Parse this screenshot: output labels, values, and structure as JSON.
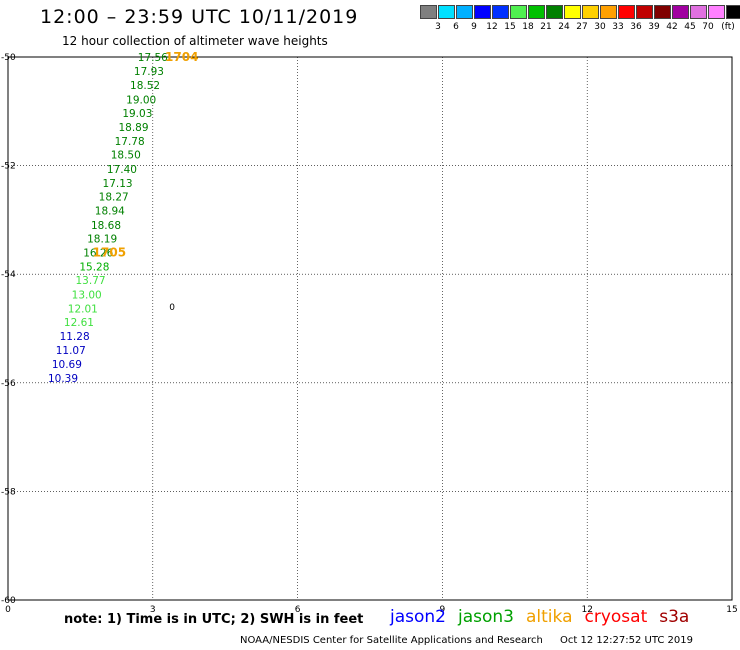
{
  "header": {
    "title": "12:00 – 23:59 UTC 10/11/2019",
    "subtitle": "12 hour collection of altimeter wave heights"
  },
  "legend": {
    "colors": [
      "#7f7f7f",
      "#00e0ff",
      "#00b0ff",
      "#0000ff",
      "#0030ff",
      "#50f050",
      "#00c000",
      "#008000",
      "#ffff00",
      "#ffd000",
      "#ffa000",
      "#ff0000",
      "#c00000",
      "#800000",
      "#a000a0",
      "#e070e0",
      "#ff80ff",
      "#000000"
    ],
    "labels": [
      "3",
      "6",
      "9",
      "12",
      "15",
      "18",
      "21",
      "24",
      "27",
      "30",
      "33",
      "36",
      "39",
      "42",
      "45",
      "70",
      "(ft)"
    ]
  },
  "map": {
    "x_axis": {
      "min": 0,
      "max": 15,
      "ticks": [
        "0",
        "3",
        "6",
        "9",
        "12",
        "15"
      ]
    },
    "y_axis": {
      "min": -60,
      "max": -50,
      "ticks": [
        "-50",
        "-52",
        "-54",
        "-56",
        "-58",
        "-60"
      ]
    },
    "observations": [
      {
        "lon": 3.0,
        "lat": -50.0,
        "value": "17.56",
        "color": "#008000"
      },
      {
        "lon": 2.92,
        "lat": -50.26,
        "value": "17.93",
        "color": "#008000"
      },
      {
        "lon": 2.84,
        "lat": -50.52,
        "value": "18.52",
        "color": "#008000"
      },
      {
        "lon": 2.76,
        "lat": -50.78,
        "value": "19.00",
        "color": "#008000"
      },
      {
        "lon": 2.68,
        "lat": -51.03,
        "value": "19.03",
        "color": "#008000"
      },
      {
        "lon": 2.6,
        "lat": -51.29,
        "value": "18.89",
        "color": "#008000"
      },
      {
        "lon": 2.52,
        "lat": -51.55,
        "value": "17.78",
        "color": "#008000"
      },
      {
        "lon": 2.44,
        "lat": -51.8,
        "value": "18.50",
        "color": "#008000"
      },
      {
        "lon": 2.36,
        "lat": -52.06,
        "value": "17.40",
        "color": "#008000"
      },
      {
        "lon": 2.27,
        "lat": -52.32,
        "value": "17.13",
        "color": "#008000"
      },
      {
        "lon": 2.19,
        "lat": -52.57,
        "value": "18.27",
        "color": "#008000"
      },
      {
        "lon": 2.11,
        "lat": -52.83,
        "value": "18.94",
        "color": "#008000"
      },
      {
        "lon": 2.03,
        "lat": -53.09,
        "value": "18.68",
        "color": "#008000"
      },
      {
        "lon": 1.95,
        "lat": -53.34,
        "value": "18.19",
        "color": "#008000"
      },
      {
        "lon": 1.87,
        "lat": -53.6,
        "value": "16.26",
        "color": "#008000"
      },
      {
        "lon": 1.79,
        "lat": -53.86,
        "value": "15.28",
        "color": "#00b000"
      },
      {
        "lon": 1.71,
        "lat": -54.11,
        "value": "13.77",
        "color": "#40e040"
      },
      {
        "lon": 1.63,
        "lat": -54.37,
        "value": "13.00",
        "color": "#40e040"
      },
      {
        "lon": 1.55,
        "lat": -54.63,
        "value": "12.01",
        "color": "#40e040"
      },
      {
        "lon": 1.47,
        "lat": -54.88,
        "value": "12.61",
        "color": "#40e040"
      },
      {
        "lon": 1.38,
        "lat": -55.14,
        "value": "11.28",
        "color": "#0000c0"
      },
      {
        "lon": 1.3,
        "lat": -55.4,
        "value": "11.07",
        "color": "#0000c0"
      },
      {
        "lon": 1.22,
        "lat": -55.65,
        "value": "10.69",
        "color": "#0000c0"
      },
      {
        "lon": 1.14,
        "lat": -55.91,
        "value": "10.39",
        "color": "#0000c0"
      }
    ],
    "time_marks": [
      {
        "lon": 3.6,
        "lat": -50.0,
        "label": "1704",
        "color": "#f0a000"
      },
      {
        "lon": 2.1,
        "lat": -53.6,
        "label": "1705",
        "color": "#f0a000"
      }
    ],
    "contour_marks": [
      {
        "lon": 3.4,
        "lat": -54.6,
        "label": "0",
        "color": "#000000"
      }
    ]
  },
  "footer": {
    "note": "note: 1) Time is in UTC; 2) SWH is in feet",
    "satellites": [
      {
        "name": "jason2",
        "color": "#0000ff"
      },
      {
        "name": "jason3",
        "color": "#00a000"
      },
      {
        "name": "altika",
        "color": "#f0a000"
      },
      {
        "name": "cryosat",
        "color": "#ff0000"
      },
      {
        "name": "s3a",
        "color": "#a00000"
      }
    ],
    "credit": "NOAA/NESDIS Center for Satellite Applications and Research",
    "timestamp": "Oct 12 12:27:52 UTC 2019"
  }
}
